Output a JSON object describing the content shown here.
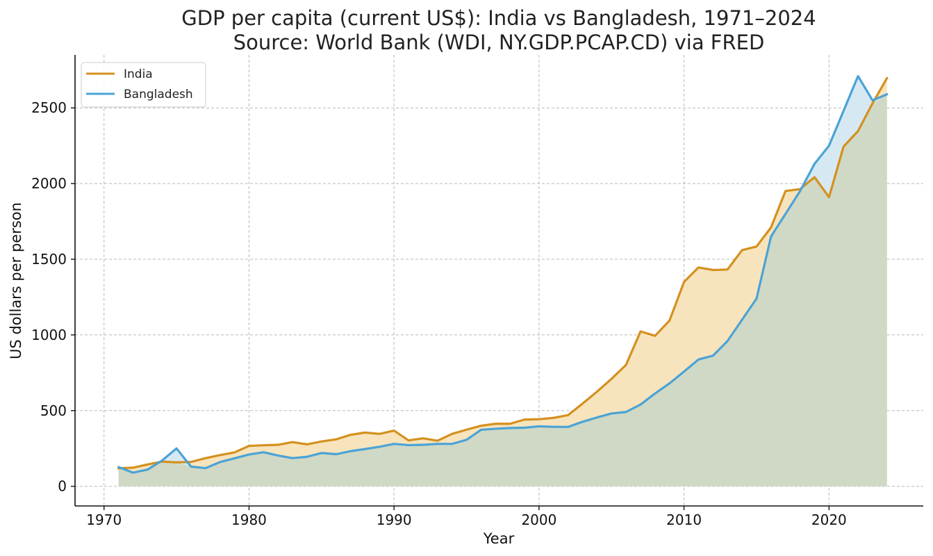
{
  "chart_data": {
    "type": "line",
    "title": "GDP per capita (current US$): India vs Bangladesh, 1971–2024",
    "subtitle": "Source: World Bank (WDI, NY.GDP.PCAP.CD) via FRED",
    "xlabel": "Year",
    "ylabel": "US dollars per person",
    "xlim": [
      1968,
      2026.5
    ],
    "ylim": [
      -130,
      2850
    ],
    "x_ticks": [
      1970,
      1980,
      1990,
      2000,
      2010,
      2020
    ],
    "y_ticks": [
      0,
      500,
      1000,
      1500,
      2000,
      2500
    ],
    "grid": true,
    "legend_position": "top-left",
    "x": [
      1971,
      1972,
      1973,
      1974,
      1975,
      1976,
      1977,
      1978,
      1979,
      1980,
      1981,
      1982,
      1983,
      1984,
      1985,
      1986,
      1987,
      1988,
      1989,
      1990,
      1991,
      1992,
      1993,
      1994,
      1995,
      1996,
      1997,
      1998,
      1999,
      2000,
      2001,
      2002,
      2003,
      2004,
      2005,
      2006,
      2007,
      2008,
      2009,
      2010,
      2011,
      2012,
      2013,
      2014,
      2015,
      2016,
      2017,
      2018,
      2019,
      2020,
      2021,
      2022,
      2023,
      2024
    ],
    "series": [
      {
        "name": "India",
        "color": "#d4901e",
        "fill": "#f7e4bd",
        "values": [
          119,
          123,
          144,
          163,
          158,
          161,
          186,
          206,
          224,
          267,
          271,
          274,
          292,
          277,
          296,
          310,
          340,
          355,
          346,
          368,
          303,
          317,
          301,
          346,
          374,
          400,
          413,
          413,
          441,
          443,
          452,
          470,
          546,
          625,
          710,
          802,
          1023,
          994,
          1095,
          1350,
          1446,
          1429,
          1432,
          1560,
          1584,
          1710,
          1951,
          1963,
          2042,
          1910,
          2244,
          2347,
          2530,
          2697
        ]
      },
      {
        "name": "Bangladesh",
        "color": "#4aa3d6",
        "fill": "#d6e9f3",
        "values": [
          127,
          90,
          110,
          170,
          250,
          130,
          120,
          160,
          185,
          210,
          225,
          203,
          186,
          195,
          220,
          212,
          232,
          246,
          261,
          280,
          272,
          274,
          280,
          280,
          307,
          373,
          380,
          385,
          387,
          396,
          393,
          392,
          426,
          455,
          481,
          491,
          540,
          613,
          680,
          758,
          838,
          863,
          960,
          1100,
          1240,
          1650,
          1800,
          1950,
          2130,
          2250,
          2480,
          2710,
          2550,
          2590
        ]
      }
    ]
  }
}
